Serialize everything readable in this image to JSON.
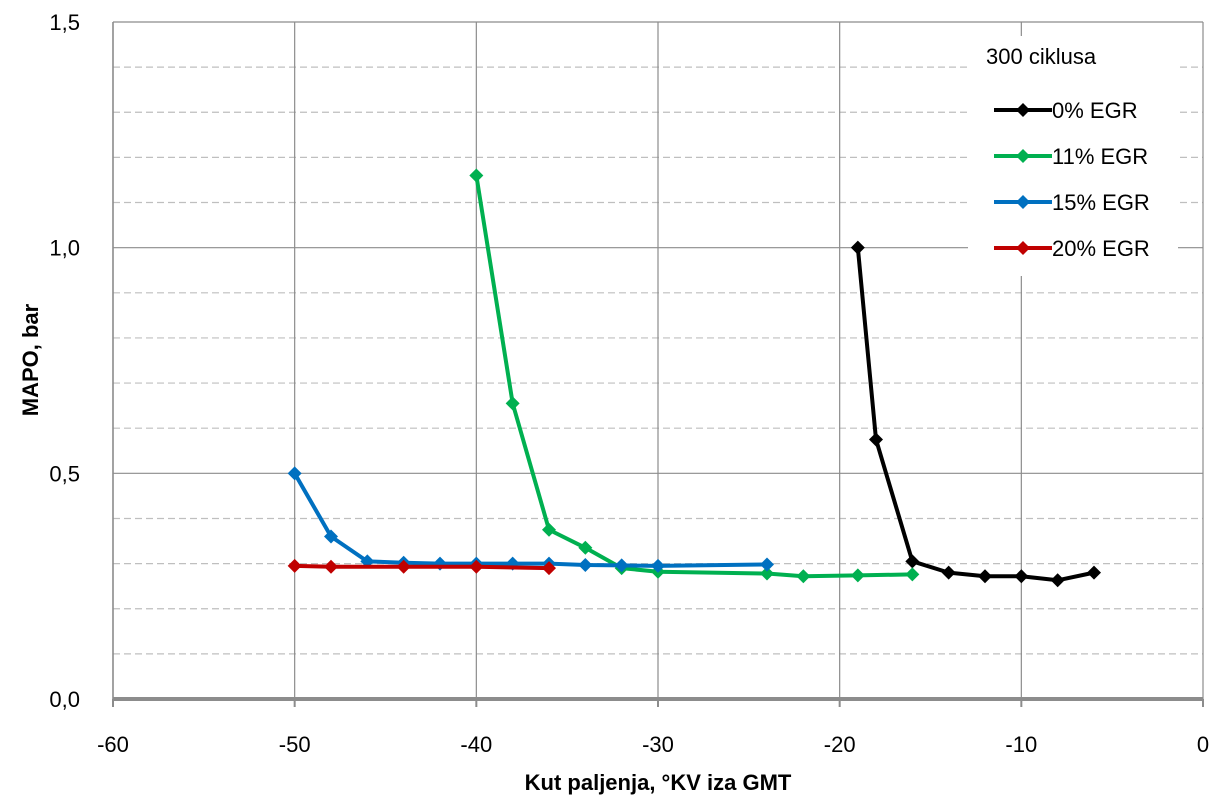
{
  "chart_data": {
    "type": "line",
    "xlabel": "Kut paljenja, °KV iza GMT",
    "ylabel": "MAPO, bar",
    "xlim": [
      -60,
      0
    ],
    "ylim": [
      0,
      1.5
    ],
    "x_ticks": [
      -60,
      -50,
      -40,
      -30,
      -20,
      -10,
      0
    ],
    "x_tick_labels": [
      "-60",
      "-50",
      "-40",
      "-30",
      "-20",
      "-10",
      "0"
    ],
    "y_ticks": [
      0,
      0.5,
      1.0,
      1.5
    ],
    "y_tick_labels": [
      "0,0",
      "0,5",
      "1,0",
      "1,5"
    ],
    "y_minor_gridlines": [
      0.1,
      0.2,
      0.3,
      0.4,
      0.6,
      0.7,
      0.8,
      0.9,
      1.1,
      1.2,
      1.3,
      1.4
    ],
    "grid": true,
    "legend": {
      "title": "300 ciklusa",
      "placement": "top-right"
    },
    "series": [
      {
        "name": "0% EGR",
        "color": "#000000",
        "marker": "diamond",
        "x": [
          -19,
          -18,
          -16,
          -14,
          -12,
          -10,
          -8,
          -6
        ],
        "y": [
          1.0,
          0.575,
          0.305,
          0.28,
          0.272,
          0.272,
          0.263,
          0.28
        ]
      },
      {
        "name": "11% EGR",
        "color": "#00B050",
        "marker": "diamond",
        "x": [
          -40,
          -38,
          -36,
          -34,
          -32,
          -30,
          -24,
          -22,
          -19,
          -16
        ],
        "y": [
          1.16,
          0.655,
          0.375,
          0.335,
          0.29,
          0.282,
          0.278,
          0.272,
          0.274,
          0.276
        ]
      },
      {
        "name": "15% EGR",
        "color": "#0070C0",
        "marker": "diamond",
        "x": [
          -50,
          -48,
          -46,
          -44,
          -42,
          -40,
          -38,
          -36,
          -34,
          -32,
          -30,
          -24
        ],
        "y": [
          0.5,
          0.36,
          0.305,
          0.302,
          0.3,
          0.3,
          0.3,
          0.3,
          0.297,
          0.296,
          0.295,
          0.298
        ]
      },
      {
        "name": "20% EGR",
        "color": "#C00000",
        "marker": "diamond",
        "x": [
          -50,
          -48,
          -44,
          -40,
          -36
        ],
        "y": [
          0.295,
          0.293,
          0.293,
          0.293,
          0.29
        ]
      }
    ]
  }
}
